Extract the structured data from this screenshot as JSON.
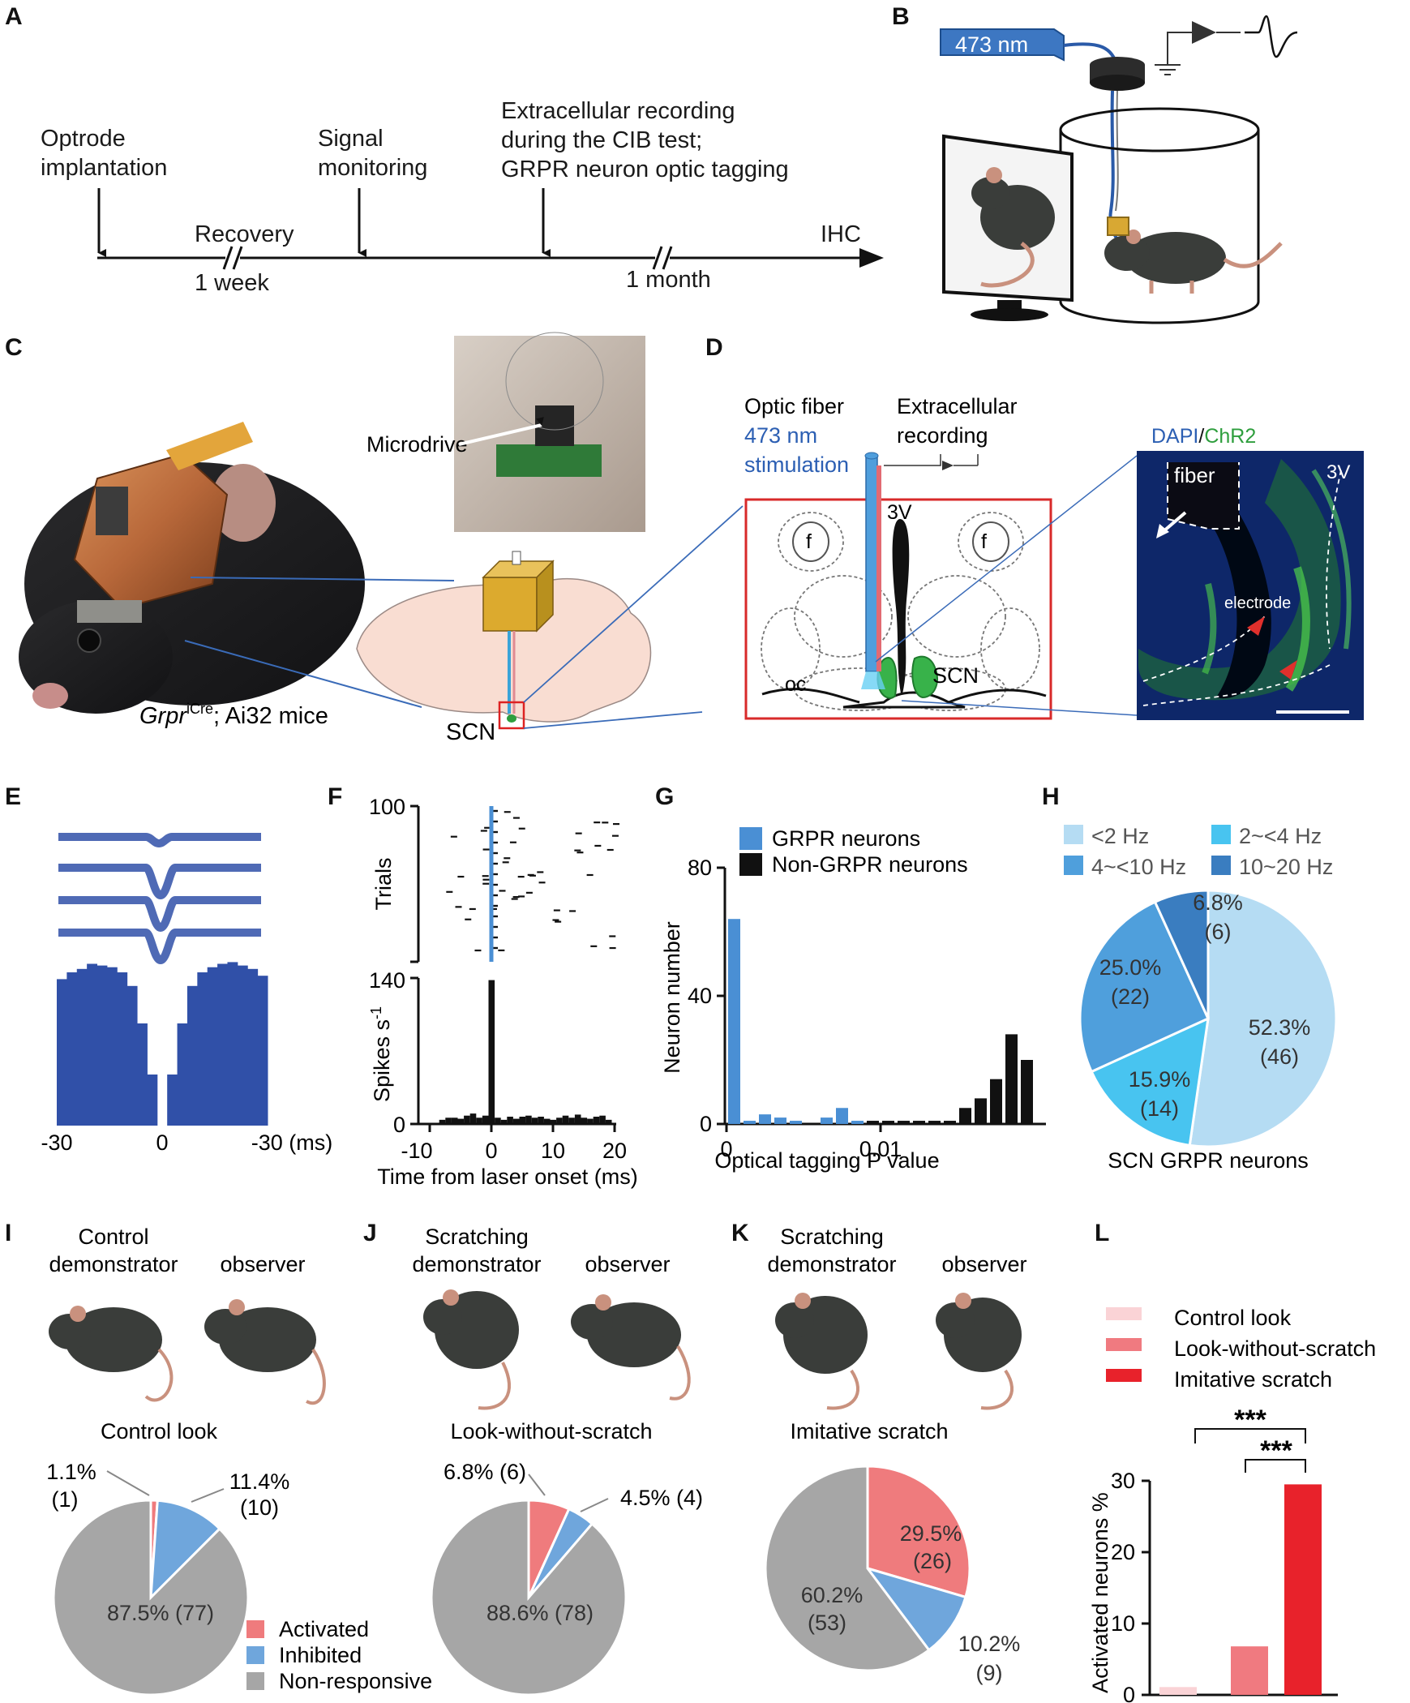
{
  "panel_letters": [
    "A",
    "B",
    "C",
    "D",
    "E",
    "F",
    "G",
    "H",
    "I",
    "J",
    "K",
    "L"
  ],
  "panelA": {
    "events": [
      "Optrode",
      "implantation",
      "Signal",
      "monitoring",
      "Extracellular recording",
      "during the CIB test;",
      "GRPR neuron optic tagging"
    ],
    "recovery": "Recovery",
    "week": "1 week",
    "month": "1 month",
    "end": "IHC"
  },
  "panelB": {
    "wavelength": "473 nm"
  },
  "panelC": {
    "microdrive": "Microdrive",
    "genotype_italic": "Grpr",
    "genotype_sup": "iCre",
    "genotype_rest": "; Ai32 mice",
    "scn": "SCN"
  },
  "panelD": {
    "optic1": "Optic fiber",
    "optic2": "473 nm",
    "optic3": "stimulation",
    "rec1": "Extracellular",
    "rec2": "recording",
    "v3": "3V",
    "f": "f",
    "scn": "SCN",
    "oc": "oc",
    "dapi": "DAPI",
    "slash": "/",
    "chr2": "ChR2",
    "fiber": "fiber",
    "electrode": "electrode"
  },
  "panelE": {
    "ticks": [
      "-30",
      "0",
      "-30 (ms)"
    ]
  },
  "panelF": {
    "raster_ylabel": "Trials",
    "raster_ytop": "100",
    "psth_ylabel": "Spikes s",
    "psth_ylabel_sup": "-1",
    "psth_ytop": "140",
    "psth_y0": "0",
    "xticks": [
      "-10",
      "0",
      "10",
      "20"
    ],
    "xlabel": "Time from laser onset (ms)"
  },
  "panelH": {
    "legend": [
      "<2 Hz",
      "2~<4 Hz",
      "4~<10 Hz",
      "10~20 Hz"
    ],
    "labels": [
      [
        "52.3%",
        "(46)"
      ],
      [
        "15.9%",
        "(14)"
      ],
      [
        "25.0%",
        "(22)"
      ],
      [
        "6.8%",
        "(6)"
      ]
    ],
    "title": "SCN GRPR neurons"
  },
  "panelI": {
    "demo1": "Control",
    "demo2": "demonstrator",
    "observer": "observer",
    "title": "Control look",
    "lbl_act1": "1.1%",
    "lbl_act2": "(1)",
    "lbl_inh1": "11.4%",
    "lbl_inh2": "(10)",
    "lbl_non": "87.5% (77)"
  },
  "panelJ": {
    "demo1": "Scratching",
    "demo2": "demonstrator",
    "observer": "observer",
    "title": "Look-without-scratch",
    "lbl_act": "6.8% (6)",
    "lbl_inh": "4.5% (4)",
    "lbl_non": "88.6% (78)"
  },
  "panelK": {
    "demo1": "Scratching",
    "demo2": "demonstrator",
    "observer": "observer",
    "title": "Imitative scratch",
    "lbl_act1": "29.5%",
    "lbl_act2": "(26)",
    "lbl_inh1": "10.2%",
    "lbl_inh2": "(9)",
    "lbl_non1": "60.2%",
    "lbl_non2": "(53)"
  },
  "pie_legend": [
    "Activated",
    "Inhibited",
    "Non-responsive"
  ],
  "panelL": {
    "legend": [
      "Control look",
      "Look-without-scratch",
      "Imitative scratch"
    ],
    "sig": "***"
  },
  "colors": {
    "blue_trace": "#3050a8",
    "grpr_blue": "#4a8fd4",
    "activated": "#ef7b7d",
    "inhibited": "#6fa6dc",
    "nonresp": "#a6a6a6",
    "hz_lt2": "#b5dcf3",
    "hz_2_4": "#48c4f0",
    "hz_4_10": "#4f9fdc",
    "hz_10_20": "#3a7dc0",
    "bar_control": "#fad3d6",
    "bar_look": "#f07a80",
    "bar_imitative": "#e8222b"
  },
  "chart_data": [
    {
      "type": "bar",
      "panel": "E",
      "xlabel": "",
      "ylabel": "",
      "xlim": [
        -30,
        30
      ],
      "note": "spike autocorrelogram, values read as relative heights",
      "x": [
        -30,
        -27,
        -24,
        -21,
        -18,
        -15,
        -12,
        -9,
        -6,
        -3,
        0,
        3,
        6,
        9,
        12,
        15,
        18,
        21,
        24,
        27,
        30
      ],
      "values": [
        0.86,
        0.9,
        0.92,
        0.95,
        0.94,
        0.93,
        0.9,
        0.82,
        0.6,
        0.3,
        0.0,
        0.3,
        0.6,
        0.82,
        0.9,
        0.93,
        0.95,
        0.96,
        0.94,
        0.92,
        0.88
      ]
    },
    {
      "type": "bar",
      "panel": "F",
      "title": "",
      "xlabel": "Time from laser onset (ms)",
      "ylabel": "Spikes s-1",
      "xlim": [
        -10,
        20
      ],
      "ylim": [
        0,
        140
      ],
      "x": [
        -8,
        -7,
        -6,
        -5,
        -4,
        -3,
        -2,
        -1,
        0,
        1,
        2,
        3,
        4,
        5,
        6,
        7,
        8,
        9,
        10,
        11,
        12,
        13,
        14,
        15,
        16,
        17,
        18,
        19
      ],
      "values": [
        4,
        6,
        6,
        5,
        8,
        10,
        6,
        8,
        138,
        6,
        4,
        7,
        5,
        7,
        8,
        6,
        7,
        5,
        4,
        6,
        8,
        6,
        9,
        6,
        5,
        7,
        8,
        4
      ]
    },
    {
      "type": "bar",
      "panel": "G",
      "xlabel": "Optical tagging P value",
      "ylabel": "Neuron number",
      "ylim": [
        0,
        80
      ],
      "x_ticks": [
        "0",
        "0.01"
      ],
      "series": [
        {
          "name": "GRPR neurons",
          "x": [
            0.0,
            0.001,
            0.002,
            0.003,
            0.004,
            0.005,
            0.006,
            0.007,
            0.008
          ],
          "values": [
            64,
            1,
            3,
            2,
            1,
            0,
            2,
            5,
            1
          ]
        },
        {
          "name": "Non-GRPR neurons",
          "x": [
            0.009,
            0.01,
            0.011,
            0.012,
            0.013,
            0.014,
            0.015,
            0.016,
            0.017,
            0.018,
            0.019
          ],
          "values": [
            1,
            1,
            1,
            1,
            1,
            1,
            5,
            8,
            14,
            28,
            20
          ]
        }
      ]
    },
    {
      "type": "pie",
      "panel": "H",
      "title": "SCN GRPR neurons",
      "categories": [
        "<2 Hz",
        "2~<4 Hz",
        "4~<10 Hz",
        "10~20 Hz"
      ],
      "values": [
        52.3,
        15.9,
        25.0,
        6.8
      ],
      "counts": [
        46,
        14,
        22,
        6
      ]
    },
    {
      "type": "pie",
      "panel": "I",
      "title": "Control look",
      "categories": [
        "Activated",
        "Inhibited",
        "Non-responsive"
      ],
      "values": [
        1.1,
        11.4,
        87.5
      ],
      "counts": [
        1,
        10,
        77
      ]
    },
    {
      "type": "pie",
      "panel": "J",
      "title": "Look-without-scratch",
      "categories": [
        "Activated",
        "Inhibited",
        "Non-responsive"
      ],
      "values": [
        6.8,
        4.5,
        88.6
      ],
      "counts": [
        6,
        4,
        78
      ]
    },
    {
      "type": "pie",
      "panel": "K",
      "title": "Imitative scratch",
      "categories": [
        "Activated",
        "Inhibited",
        "Non-responsive"
      ],
      "values": [
        29.5,
        10.2,
        60.2
      ],
      "counts": [
        26,
        9,
        53
      ]
    },
    {
      "type": "bar",
      "panel": "L",
      "ylabel": "Activated neurons %",
      "ylim": [
        0,
        30
      ],
      "yticks": [
        "0",
        "10",
        "20",
        "30"
      ],
      "categories": [
        "Control look",
        "Look-without-scratch",
        "Imitative scratch"
      ],
      "values": [
        1.1,
        6.8,
        29.5
      ],
      "significance": [
        "***",
        "***"
      ]
    }
  ]
}
